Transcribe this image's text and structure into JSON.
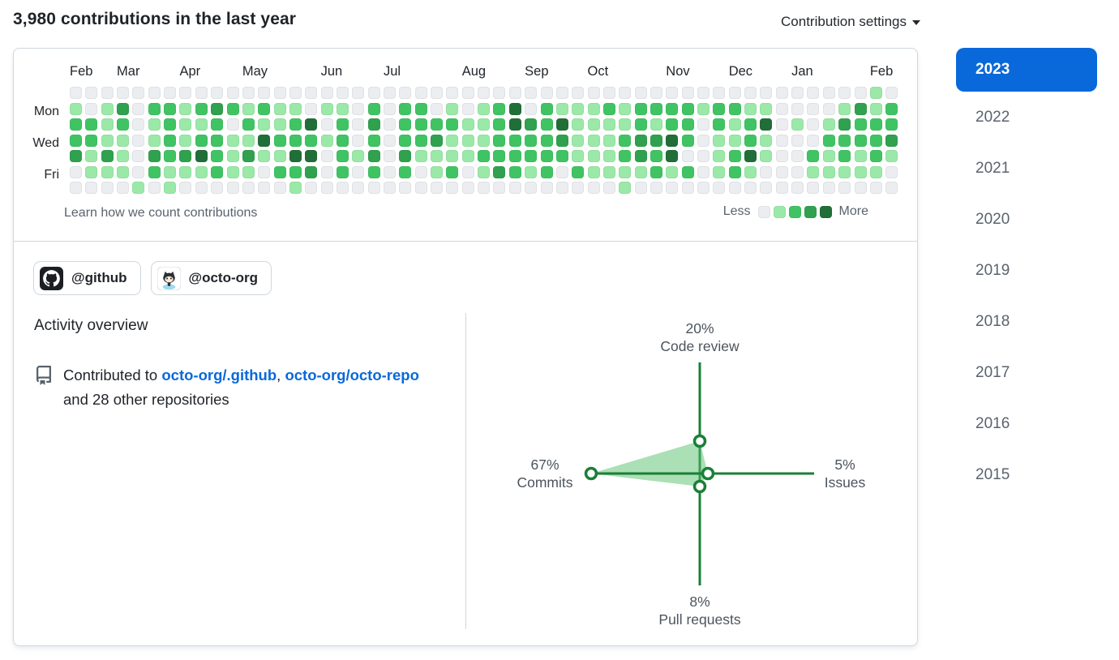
{
  "header": {
    "title": "3,980 contributions in the last year",
    "settings_label": "Contribution settings"
  },
  "colors": {
    "accent_blue": "#0969da",
    "link_blue": "#0969da",
    "radar_stroke": "#1a7f37",
    "radar_fill": "#57bf6d",
    "card_border": "#d0d7de",
    "muted_text": "#59636e"
  },
  "calendar": {
    "day_labels": [
      "Mon",
      "Wed",
      "Fri"
    ],
    "months": [
      {
        "label": "Feb",
        "col": 0
      },
      {
        "label": "Mar",
        "col": 3
      },
      {
        "label": "Apr",
        "col": 7
      },
      {
        "label": "May",
        "col": 11
      },
      {
        "label": "Jun",
        "col": 16
      },
      {
        "label": "Jul",
        "col": 20
      },
      {
        "label": "Aug",
        "col": 25
      },
      {
        "label": "Sep",
        "col": 29
      },
      {
        "label": "Oct",
        "col": 33
      },
      {
        "label": "Nov",
        "col": 38
      },
      {
        "label": "Dec",
        "col": 42
      },
      {
        "label": "Jan",
        "col": 46
      },
      {
        "label": "Feb",
        "col": 51
      }
    ],
    "footer_link": "Learn how we count contributions",
    "legend": {
      "less": "Less",
      "more": "More"
    },
    "palette": [
      "#ebedf0",
      "#9be9a8",
      "#40c463",
      "#30a14e",
      "#216e39"
    ],
    "grid_rows": [
      [
        0,
        0,
        0,
        0,
        0,
        0,
        0,
        0,
        0,
        0,
        0,
        0,
        0,
        0,
        0,
        0,
        0,
        0,
        0,
        0,
        0,
        0,
        0,
        0,
        0,
        0,
        0,
        0,
        0,
        0,
        0,
        0,
        0,
        0,
        0,
        0,
        0,
        0,
        0,
        0,
        0,
        0,
        0,
        0,
        0,
        0,
        0,
        0,
        0,
        0,
        0,
        1,
        0
      ],
      [
        1,
        0,
        1,
        3,
        0,
        2,
        2,
        1,
        2,
        3,
        2,
        1,
        2,
        1,
        1,
        0,
        1,
        1,
        0,
        2,
        0,
        2,
        2,
        0,
        1,
        0,
        1,
        2,
        4,
        0,
        2,
        1,
        1,
        1,
        2,
        1,
        2,
        2,
        2,
        2,
        1,
        2,
        2,
        1,
        1,
        0,
        0,
        0,
        0,
        1,
        3,
        1,
        2
      ],
      [
        2,
        2,
        1,
        2,
        0,
        1,
        2,
        1,
        1,
        2,
        0,
        2,
        1,
        1,
        2,
        4,
        0,
        2,
        0,
        3,
        0,
        2,
        2,
        2,
        2,
        1,
        1,
        2,
        4,
        3,
        2,
        4,
        1,
        1,
        1,
        1,
        2,
        1,
        2,
        2,
        0,
        2,
        1,
        2,
        4,
        0,
        1,
        0,
        1,
        3,
        2,
        2,
        2
      ],
      [
        2,
        2,
        1,
        1,
        0,
        1,
        2,
        1,
        2,
        2,
        1,
        1,
        4,
        2,
        2,
        2,
        1,
        2,
        0,
        2,
        0,
        2,
        2,
        3,
        1,
        1,
        1,
        2,
        2,
        2,
        2,
        3,
        1,
        1,
        1,
        2,
        3,
        3,
        4,
        2,
        0,
        1,
        1,
        2,
        1,
        0,
        0,
        0,
        2,
        2,
        2,
        2,
        3
      ],
      [
        3,
        1,
        3,
        1,
        0,
        3,
        2,
        3,
        4,
        2,
        1,
        3,
        1,
        1,
        4,
        4,
        0,
        2,
        1,
        3,
        0,
        3,
        1,
        1,
        1,
        1,
        2,
        2,
        2,
        2,
        2,
        2,
        1,
        1,
        1,
        2,
        3,
        2,
        4,
        0,
        0,
        1,
        2,
        4,
        1,
        0,
        0,
        2,
        1,
        2,
        1,
        2,
        1
      ],
      [
        0,
        1,
        1,
        1,
        0,
        2,
        1,
        1,
        1,
        2,
        1,
        1,
        0,
        2,
        2,
        3,
        0,
        2,
        0,
        2,
        0,
        2,
        0,
        1,
        2,
        0,
        1,
        3,
        2,
        1,
        2,
        0,
        2,
        1,
        1,
        1,
        1,
        2,
        1,
        2,
        0,
        1,
        2,
        1,
        0,
        0,
        0,
        1,
        1,
        1,
        1,
        1,
        0
      ],
      [
        0,
        0,
        0,
        0,
        1,
        0,
        1,
        0,
        0,
        0,
        0,
        0,
        0,
        0,
        1,
        0,
        0,
        0,
        0,
        0,
        0,
        0,
        0,
        0,
        0,
        0,
        0,
        0,
        0,
        0,
        0,
        0,
        0,
        0,
        0,
        1,
        0,
        0,
        0,
        0,
        0,
        0,
        0,
        0,
        0,
        0,
        0,
        0,
        0,
        0,
        0,
        0,
        0
      ]
    ]
  },
  "orgs": [
    {
      "label": "@github"
    },
    {
      "label": "@octo-org"
    }
  ],
  "activity": {
    "heading": "Activity overview",
    "contributed_prefix": "Contributed to ",
    "repo1": "octo-org/.github",
    "separator": ",",
    "repo2": "octo-org/octo-repo",
    "suffix": " and 28 other repositories"
  },
  "chart_data": {
    "type": "radar",
    "title": "Activity overview distribution",
    "pixels_per_percent": 2,
    "axes": [
      {
        "label": "Code review",
        "value_pct": 20,
        "value_label": "20%",
        "direction": "up"
      },
      {
        "label": "Issues",
        "value_pct": 5,
        "value_label": "5%",
        "direction": "right"
      },
      {
        "label": "Pull requests",
        "value_pct": 8,
        "value_label": "8%",
        "direction": "down"
      },
      {
        "label": "Commits",
        "value_pct": 67,
        "value_label": "67%",
        "direction": "left"
      }
    ]
  },
  "years": {
    "items": [
      {
        "label": "2023",
        "active": true
      },
      {
        "label": "2022",
        "active": false
      },
      {
        "label": "2021",
        "active": false
      },
      {
        "label": "2020",
        "active": false
      },
      {
        "label": "2019",
        "active": false
      },
      {
        "label": "2018",
        "active": false
      },
      {
        "label": "2017",
        "active": false
      },
      {
        "label": "2016",
        "active": false
      },
      {
        "label": "2015",
        "active": false
      }
    ]
  }
}
